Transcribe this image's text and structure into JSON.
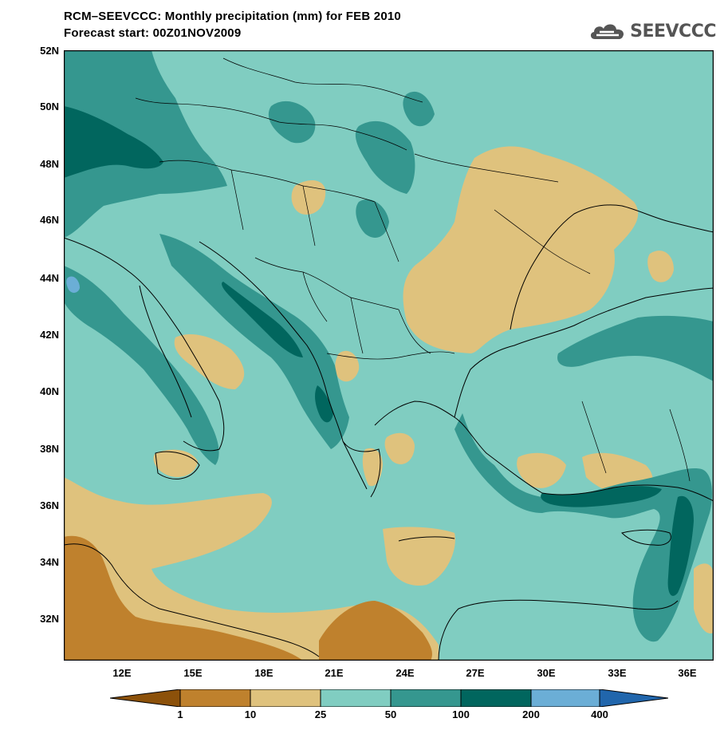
{
  "header": {
    "title_line1": "RCM–SEEVCCC: Monthly precipitation (mm) for FEB 2010",
    "title_line2": "Forecast start: 00Z01NOV2009"
  },
  "logo": {
    "text": "SEEVCCC",
    "icon": "cloud-icon",
    "color": "#555555"
  },
  "map": {
    "lat_labels": [
      "52N",
      "50N",
      "48N",
      "46N",
      "44N",
      "42N",
      "40N",
      "38N",
      "36N",
      "34N",
      "32N"
    ],
    "lon_labels": [
      "12E",
      "15E",
      "18E",
      "21E",
      "24E",
      "27E",
      "30E",
      "33E",
      "36E"
    ],
    "base_color": "#80cdc1"
  },
  "colorbar": {
    "labels": [
      "1",
      "10",
      "25",
      "50",
      "100",
      "200",
      "400"
    ],
    "colors": [
      "#8c510a",
      "#bf812d",
      "#dfc27d",
      "#80cdc1",
      "#35978f",
      "#01665e",
      "#6baed6",
      "#2166ac"
    ]
  }
}
